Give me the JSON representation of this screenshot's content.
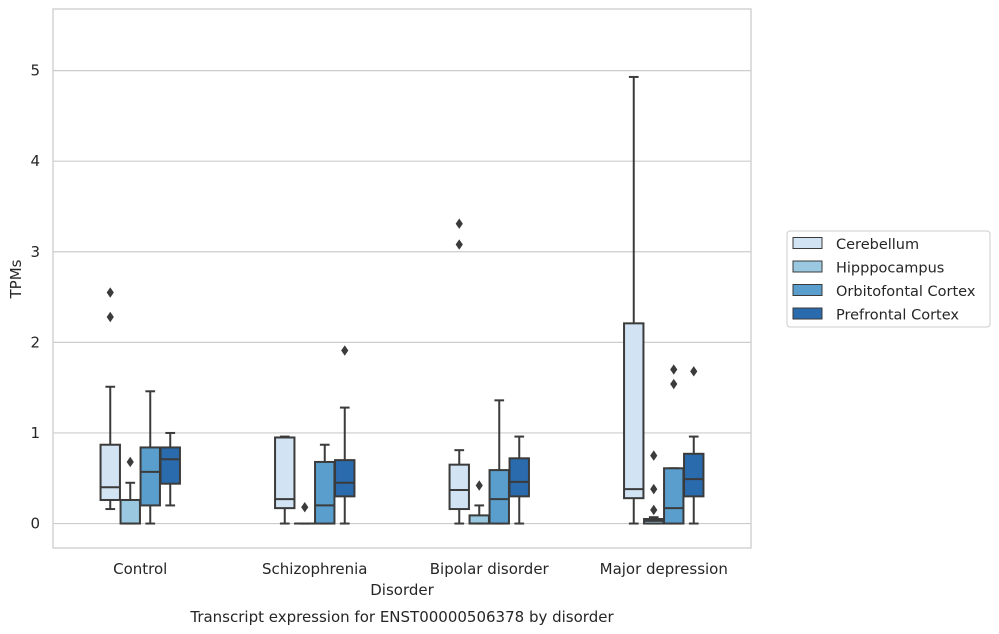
{
  "chart_data": {
    "type": "boxplot",
    "title": "Transcript expression for ENST00000506378 by disorder",
    "xlabel": "Disorder",
    "ylabel": "TPMs",
    "ylim": [
      -0.27,
      5.68
    ],
    "yticks": [
      0,
      1,
      2,
      3,
      4,
      5
    ],
    "grid": "horizontal",
    "legend_position": "right",
    "categories": [
      "Control",
      "Schizophrenia",
      "Bipolar disorder",
      "Major depression"
    ],
    "series": [
      {
        "name": "Cerebellum",
        "color": "#d2e3f3",
        "boxes": [
          {
            "q1": 0.26,
            "median": 0.4,
            "q3": 0.87,
            "whislo": 0.16,
            "whishi": 1.51,
            "fliers": [
              2.28,
              2.55
            ]
          },
          {
            "q1": 0.17,
            "median": 0.27,
            "q3": 0.95,
            "whislo": 0.0,
            "whishi": 0.96,
            "fliers": []
          },
          {
            "q1": 0.16,
            "median": 0.37,
            "q3": 0.65,
            "whislo": 0.0,
            "whishi": 0.81,
            "fliers": [
              3.08,
              3.31
            ]
          },
          {
            "q1": 0.28,
            "median": 0.38,
            "q3": 2.21,
            "whislo": 0.0,
            "whishi": 4.93,
            "fliers": []
          }
        ]
      },
      {
        "name": "Hipppocampus",
        "color": "#9ac8e0",
        "boxes": [
          {
            "q1": 0.0,
            "median": 0.0,
            "q3": 0.26,
            "whislo": 0.0,
            "whishi": 0.45,
            "fliers": [
              0.68
            ]
          },
          {
            "q1": 0.0,
            "median": 0.0,
            "q3": 0.0,
            "whislo": 0.0,
            "whishi": 0.0,
            "fliers": [
              0.18
            ]
          },
          {
            "q1": 0.0,
            "median": 0.0,
            "q3": 0.09,
            "whislo": 0.0,
            "whishi": 0.2,
            "fliers": [
              0.42
            ]
          },
          {
            "q1": 0.0,
            "median": 0.03,
            "q3": 0.05,
            "whislo": 0.0,
            "whishi": 0.07,
            "fliers": [
              0.15,
              0.38,
              0.75
            ]
          }
        ]
      },
      {
        "name": "Orbitofontal Cortex",
        "color": "#5a9ecd",
        "boxes": [
          {
            "q1": 0.2,
            "median": 0.57,
            "q3": 0.84,
            "whislo": 0.0,
            "whishi": 1.46,
            "fliers": []
          },
          {
            "q1": 0.0,
            "median": 0.2,
            "q3": 0.68,
            "whislo": 0.0,
            "whishi": 0.87,
            "fliers": []
          },
          {
            "q1": 0.0,
            "median": 0.27,
            "q3": 0.59,
            "whislo": 0.0,
            "whishi": 1.36,
            "fliers": []
          },
          {
            "q1": 0.0,
            "median": 0.17,
            "q3": 0.61,
            "whislo": 0.0,
            "whishi": 0.61,
            "fliers": [
              1.54,
              1.7
            ]
          }
        ]
      },
      {
        "name": "Prefrontal Cortex",
        "color": "#2a6bad",
        "boxes": [
          {
            "q1": 0.44,
            "median": 0.71,
            "q3": 0.84,
            "whislo": 0.2,
            "whishi": 1.0,
            "fliers": []
          },
          {
            "q1": 0.3,
            "median": 0.45,
            "q3": 0.7,
            "whislo": 0.0,
            "whishi": 1.28,
            "fliers": [
              1.91
            ]
          },
          {
            "q1": 0.3,
            "median": 0.46,
            "q3": 0.72,
            "whislo": 0.0,
            "whishi": 0.96,
            "fliers": []
          },
          {
            "q1": 0.3,
            "median": 0.49,
            "q3": 0.77,
            "whislo": 0.0,
            "whishi": 0.96,
            "fliers": [
              1.68
            ]
          }
        ]
      }
    ]
  }
}
